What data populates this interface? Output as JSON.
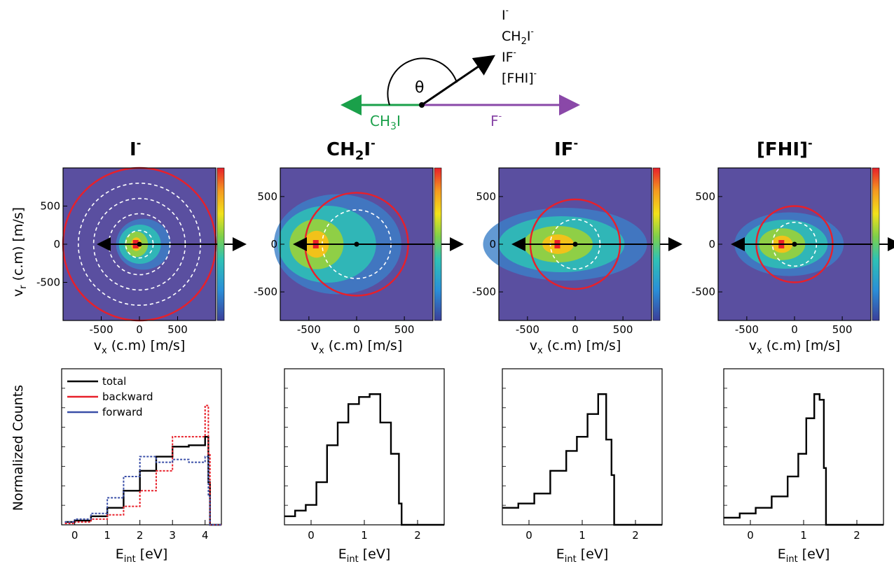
{
  "colors": {
    "frame": "#000000",
    "circle": "#e8202a",
    "ring": "#ffffff",
    "arrow": "#000000",
    "green": "#1aa04a",
    "purple": "#8a48a8",
    "background_map": "#5a4fa0",
    "total": "#000000",
    "backward": "#e8202a",
    "forward": "#3a4fa8"
  },
  "scheme": {
    "products": [
      "I",
      "CH",
      "2",
      "I",
      "IF",
      "[FHI]"
    ],
    "angle": "θ",
    "left_label": {
      "a": "CH",
      "b": "3",
      "c": "I"
    },
    "right_label": "F",
    "minus": "-"
  },
  "panels": [
    {
      "title": "I",
      "title_parts": [
        {
          "t": "I"
        }
      ],
      "superscript": "-"
    },
    {
      "title": "CH2I",
      "title_parts": [
        {
          "t": "CH"
        },
        {
          "t": "2",
          "sub": true
        },
        {
          "t": "I"
        }
      ],
      "superscript": "-"
    },
    {
      "title": "IF",
      "title_parts": [
        {
          "t": "IF"
        }
      ],
      "superscript": "-"
    },
    {
      "title": "[FHI]",
      "title_parts": [
        {
          "t": "[FHI]"
        }
      ],
      "superscript": "-"
    }
  ],
  "axes": {
    "top_ylabel_main": "v",
    "top_ylabel_sub": "r",
    "top_ylabel_rest": " (c.m) [m/s]",
    "top_xlabel_main": "v",
    "top_xlabel_sub": "x",
    "top_xlabel_rest": " (c.m) [m/s]",
    "bottom_ylabel": "Normalized Counts",
    "bottom_xlabel_main": "E",
    "bottom_xlabel_sub": "int",
    "bottom_xlabel_rest": " [eV]"
  },
  "legend": {
    "total": "total",
    "backward": "backward",
    "forward": "forward"
  },
  "chart_data": [
    {
      "type": "heatmap",
      "panel": "I-",
      "x_ticks": [
        "-500",
        "0",
        "500"
      ],
      "y_ticks": [
        "500",
        "0",
        "-500"
      ],
      "xlim": [
        -1000,
        1000
      ],
      "ylim": [
        -1000,
        1000
      ],
      "hotspot": {
        "x": -40,
        "y": 0
      },
      "red_circle_radius": 1000,
      "white_ring_radii": [
        180,
        400,
        600,
        800
      ]
    },
    {
      "type": "heatmap",
      "panel": "CH2I-",
      "x_ticks": [
        "-500",
        "0",
        "500"
      ],
      "y_ticks": [
        "500",
        "0",
        "-500"
      ],
      "xlim": [
        -800,
        800
      ],
      "ylim": [
        -800,
        800
      ],
      "hotspot": {
        "x": -420,
        "y": 0
      },
      "red_circle_radius": 540,
      "white_ring_radii": [
        360
      ]
    },
    {
      "type": "heatmap",
      "panel": "IF-",
      "x_ticks": [
        "-500",
        "0",
        "500"
      ],
      "y_ticks": [
        "500",
        "0",
        "-500"
      ],
      "xlim": [
        -800,
        800
      ],
      "ylim": [
        -800,
        800
      ],
      "hotspot": {
        "x": -180,
        "y": 0
      },
      "red_circle_radius": 470,
      "white_ring_radii": [
        260
      ]
    },
    {
      "type": "heatmap",
      "panel": "[FHI]-",
      "x_ticks": [
        "-500",
        "0",
        "500"
      ],
      "y_ticks": [
        "500",
        "0",
        "-500"
      ],
      "xlim": [
        -800,
        800
      ],
      "ylim": [
        -800,
        800
      ],
      "hotspot": {
        "x": -130,
        "y": 0
      },
      "red_circle_radius": 400,
      "white_ring_radii": [
        230
      ]
    },
    {
      "type": "line",
      "panel": "I- E_int",
      "x_ticks": [
        "0",
        "1",
        "2",
        "3",
        "4"
      ],
      "xlim": [
        -0.4,
        4.5
      ],
      "ylim": [
        0,
        1
      ],
      "series": [
        {
          "name": "total",
          "x": [
            -0.3,
            0,
            0.5,
            1,
            1.5,
            2,
            2.5,
            3,
            3.5,
            4,
            4.1,
            4.15,
            4.5
          ],
          "y": [
            0.02,
            0.03,
            0.06,
            0.12,
            0.24,
            0.38,
            0.48,
            0.55,
            0.56,
            0.62,
            0.3,
            0,
            0
          ]
        },
        {
          "name": "backward",
          "x": [
            -0.3,
            0,
            0.5,
            1,
            1.5,
            2,
            2.5,
            3,
            3.5,
            4,
            4.1,
            4.15,
            4.5
          ],
          "y": [
            0.01,
            0.02,
            0.04,
            0.07,
            0.13,
            0.24,
            0.38,
            0.62,
            0.62,
            0.84,
            0.5,
            0,
            0
          ]
        },
        {
          "name": "forward",
          "x": [
            -0.3,
            0,
            0.5,
            1,
            1.5,
            2,
            2.5,
            3,
            3.5,
            4,
            4.1,
            4.15,
            4.5
          ],
          "y": [
            0.02,
            0.04,
            0.08,
            0.19,
            0.34,
            0.48,
            0.44,
            0.46,
            0.44,
            0.48,
            0.2,
            0,
            0
          ]
        }
      ]
    },
    {
      "type": "line",
      "panel": "CH2I- E_int",
      "x_ticks": [
        "0",
        "1",
        "2"
      ],
      "xlim": [
        -0.5,
        2.5
      ],
      "ylim": [
        0,
        1
      ],
      "series": [
        {
          "x": [
            -0.5,
            -0.3,
            -0.1,
            0.1,
            0.3,
            0.5,
            0.7,
            0.9,
            1.1,
            1.3,
            1.5,
            1.65,
            1.7,
            2.5
          ],
          "y": [
            0.06,
            0.1,
            0.14,
            0.3,
            0.56,
            0.72,
            0.85,
            0.9,
            0.92,
            0.72,
            0.5,
            0.15,
            0,
            0
          ]
        }
      ]
    },
    {
      "type": "line",
      "panel": "IF- E_int",
      "x_ticks": [
        "0",
        "1",
        "2"
      ],
      "xlim": [
        -0.5,
        2.5
      ],
      "ylim": [
        0,
        1
      ],
      "series": [
        {
          "x": [
            -0.5,
            -0.2,
            0.1,
            0.4,
            0.7,
            0.9,
            1.1,
            1.3,
            1.45,
            1.55,
            1.6,
            2.5
          ],
          "y": [
            0.12,
            0.15,
            0.22,
            0.38,
            0.52,
            0.62,
            0.78,
            0.92,
            0.6,
            0.35,
            0,
            0
          ]
        }
      ]
    },
    {
      "type": "line",
      "panel": "[FHI]- E_int",
      "x_ticks": [
        "0",
        "1",
        "2"
      ],
      "xlim": [
        -0.5,
        2.5
      ],
      "ylim": [
        0,
        1
      ],
      "series": [
        {
          "x": [
            -0.5,
            -0.2,
            0.1,
            0.4,
            0.7,
            0.9,
            1.05,
            1.2,
            1.3,
            1.38,
            1.42,
            2.5
          ],
          "y": [
            0.05,
            0.08,
            0.12,
            0.2,
            0.34,
            0.5,
            0.75,
            0.92,
            0.88,
            0.4,
            0,
            0
          ]
        }
      ]
    }
  ]
}
